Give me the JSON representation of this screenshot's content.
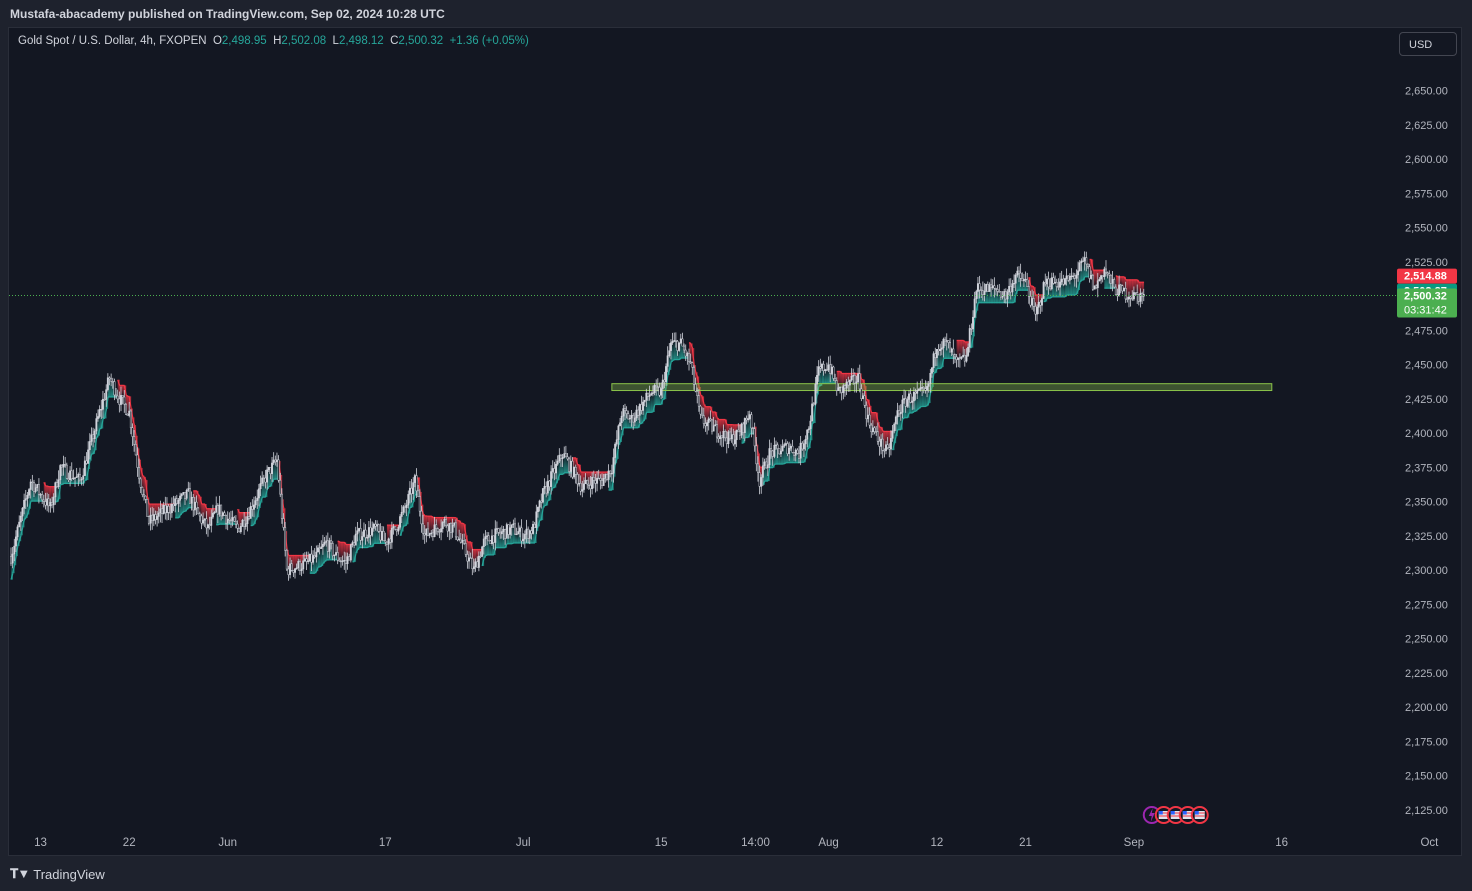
{
  "header": {
    "published": "Mustafa-abacademy published on TradingView.com, Sep 02, 2024 10:28 UTC"
  },
  "legend": {
    "symbol": "Gold Spot / U.S. Dollar, 4h, FXOPEN",
    "open_label": "O",
    "open": "2,498.95",
    "high_label": "H",
    "high": "2,502.08",
    "low_label": "L",
    "low": "2,498.12",
    "close_label": "C",
    "close": "2,500.32",
    "change": "+1.36 (+0.05%)"
  },
  "currency_button": "USD",
  "footer": {
    "brand": "TradingView"
  },
  "colors": {
    "up": "#26a69a",
    "down": "#f23645",
    "candle": "#d1d4dc",
    "zone": "#8bc34a",
    "background": "#131722"
  },
  "chart_data": {
    "type": "candlestick",
    "ylim": [
      2105,
      2670
    ],
    "y_ticks": [
      "2,125.00",
      "2,150.00",
      "2,175.00",
      "2,200.00",
      "2,225.00",
      "2,250.00",
      "2,275.00",
      "2,300.00",
      "2,325.00",
      "2,350.00",
      "2,375.00",
      "2,400.00",
      "2,425.00",
      "2,450.00",
      "2,475.00",
      "2,500.00",
      "2,525.00",
      "2,550.00",
      "2,575.00",
      "2,600.00",
      "2,625.00",
      "2,650.00"
    ],
    "x_ticks": [
      "13",
      "22",
      "Jun",
      "17",
      "Jul",
      "15",
      "14:00",
      "Aug",
      "12",
      "21",
      "Sep",
      "16",
      "Oct"
    ],
    "price_path": [
      [
        "May 10",
        2310
      ],
      [
        "May 12",
        2365
      ],
      [
        "May 14",
        2345
      ],
      [
        "May 15",
        2375
      ],
      [
        "May 17",
        2365
      ],
      [
        "May 19",
        2415
      ],
      [
        "May 20",
        2440
      ],
      [
        "May 21",
        2425
      ],
      [
        "May 22",
        2415
      ],
      [
        "May 23",
        2370
      ],
      [
        "May 24",
        2335
      ],
      [
        "May 26",
        2345
      ],
      [
        "May 27",
        2350
      ],
      [
        "May 28",
        2355
      ],
      [
        "May 29",
        2340
      ],
      [
        "May 30",
        2330
      ],
      [
        "May 31",
        2345
      ],
      [
        "Jun 2",
        2330
      ],
      [
        "Jun 3",
        2340
      ],
      [
        "Jun 4",
        2355
      ],
      [
        "Jun 5",
        2370
      ],
      [
        "Jun 6",
        2380
      ],
      [
        "Jun 7",
        2300
      ],
      [
        "Jun 9",
        2305
      ],
      [
        "Jun 10",
        2310
      ],
      [
        "Jun 11",
        2320
      ],
      [
        "Jun 12",
        2310
      ],
      [
        "Jun 13",
        2305
      ],
      [
        "Jun 14",
        2325
      ],
      [
        "Jun 16",
        2330
      ],
      [
        "Jun 17",
        2320
      ],
      [
        "Jun 18",
        2330
      ],
      [
        "Jun 19",
        2345
      ],
      [
        "Jun 20",
        2365
      ],
      [
        "Jun 21",
        2325
      ],
      [
        "Jun 23",
        2335
      ],
      [
        "Jun 24",
        2330
      ],
      [
        "Jun 25",
        2315
      ],
      [
        "Jun 26",
        2300
      ],
      [
        "Jun 27",
        2320
      ],
      [
        "Jun 28",
        2325
      ],
      [
        "Jun 30",
        2330
      ],
      [
        "Jul 1",
        2325
      ],
      [
        "Jul 2",
        2330
      ],
      [
        "Jul 3",
        2355
      ],
      [
        "Jul 5",
        2385
      ],
      [
        "Jul 7",
        2360
      ],
      [
        "Jul 8",
        2365
      ],
      [
        "Jul 9",
        2365
      ],
      [
        "Jul 10",
        2375
      ],
      [
        "Jul 11",
        2415
      ],
      [
        "Jul 12",
        2410
      ],
      [
        "Jul 14",
        2430
      ],
      [
        "Jul 15",
        2430
      ],
      [
        "Jul 16",
        2465
      ],
      [
        "Jul 17",
        2465
      ],
      [
        "Jul 18",
        2450
      ],
      [
        "Jul 19",
        2410
      ],
      [
        "Jul 21",
        2400
      ],
      [
        "Jul 22",
        2395
      ],
      [
        "Jul 23",
        2400
      ],
      [
        "Jul 24",
        2415
      ],
      [
        "Jul 25",
        2365
      ],
      [
        "Jul 26",
        2385
      ],
      [
        "Jul 28",
        2390
      ],
      [
        "Jul 29",
        2385
      ],
      [
        "Jul 30",
        2405
      ],
      [
        "Jul 31",
        2445
      ],
      [
        "Aug 1",
        2450
      ],
      [
        "Aug 2",
        2430
      ],
      [
        "Aug 4",
        2440
      ],
      [
        "Aug 5",
        2410
      ],
      [
        "Aug 6",
        2395
      ],
      [
        "Aug 7",
        2385
      ],
      [
        "Aug 8",
        2415
      ],
      [
        "Aug 9",
        2425
      ],
      [
        "Aug 11",
        2430
      ],
      [
        "Aug 12",
        2465
      ],
      [
        "Aug 13",
        2465
      ],
      [
        "Aug 14",
        2450
      ],
      [
        "Aug 15",
        2455
      ],
      [
        "Aug 16",
        2505
      ],
      [
        "Aug 18",
        2505
      ],
      [
        "Aug 19",
        2500
      ],
      [
        "Aug 20",
        2515
      ],
      [
        "Aug 21",
        2510
      ],
      [
        "Aug 22",
        2485
      ],
      [
        "Aug 23",
        2510
      ],
      [
        "Aug 25",
        2510
      ],
      [
        "Aug 26",
        2515
      ],
      [
        "Aug 27",
        2525
      ],
      [
        "Aug 28",
        2505
      ],
      [
        "Aug 29",
        2520
      ],
      [
        "Aug 30",
        2505
      ],
      [
        "Sep 1",
        2500
      ],
      [
        "Sep 2",
        2500.32
      ]
    ],
    "price_markers": [
      {
        "value": "2,514.88",
        "price": 2514.88,
        "color": "#f23645"
      },
      {
        "value": "2,503.87",
        "price": 2503.87,
        "color": "#089981"
      },
      {
        "value": "2,500.32",
        "price": 2500.32,
        "color": "#4caf50",
        "countdown": "03:31:42"
      }
    ],
    "zone": {
      "price_low": 2431,
      "price_high": 2436,
      "from": "Jul 10",
      "to": "Sep 15"
    }
  }
}
